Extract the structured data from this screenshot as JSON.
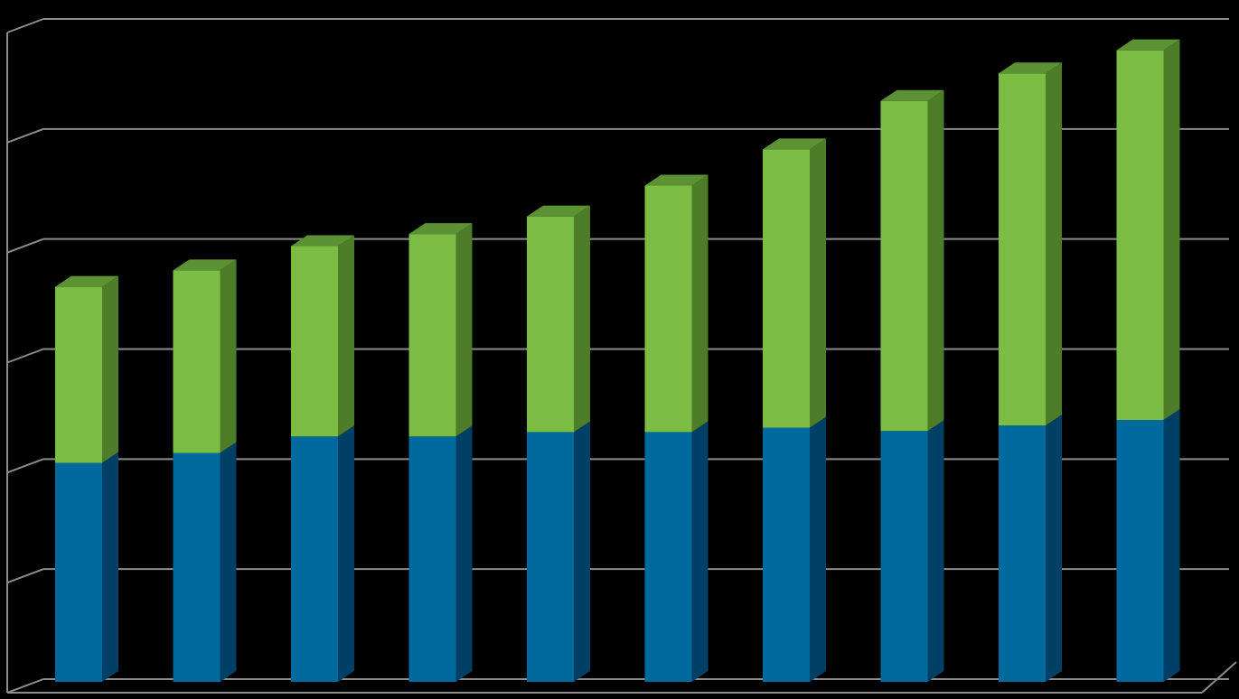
{
  "chart_data": {
    "type": "bar",
    "stacked": true,
    "three_d": true,
    "categories": [
      "",
      "",
      "",
      "",
      "",
      "",
      "",
      "",
      "",
      ""
    ],
    "series": [
      {
        "values": [
          1.99,
          2.08,
          2.23,
          2.23,
          2.27,
          2.27,
          2.31,
          2.28,
          2.33,
          2.38
        ]
      },
      {
        "values": [
          1.6,
          1.66,
          1.73,
          1.84,
          1.96,
          2.24,
          2.53,
          3.0,
          3.2,
          3.36
        ]
      }
    ],
    "ylim": [
      0,
      6
    ],
    "yticks": [
      0,
      1,
      2,
      3,
      4,
      5,
      6
    ],
    "grid": true,
    "legend": "none",
    "title": "",
    "xlabel": "",
    "ylabel": ""
  },
  "colors": {
    "background": "#000000",
    "grid": "#8c8c8c",
    "series_front": [
      "#006a9e",
      "#7abd42"
    ],
    "series_side": [
      "#004066",
      "#4e7d2a"
    ],
    "series_top": [
      "#00557f",
      "#5d9234"
    ]
  }
}
